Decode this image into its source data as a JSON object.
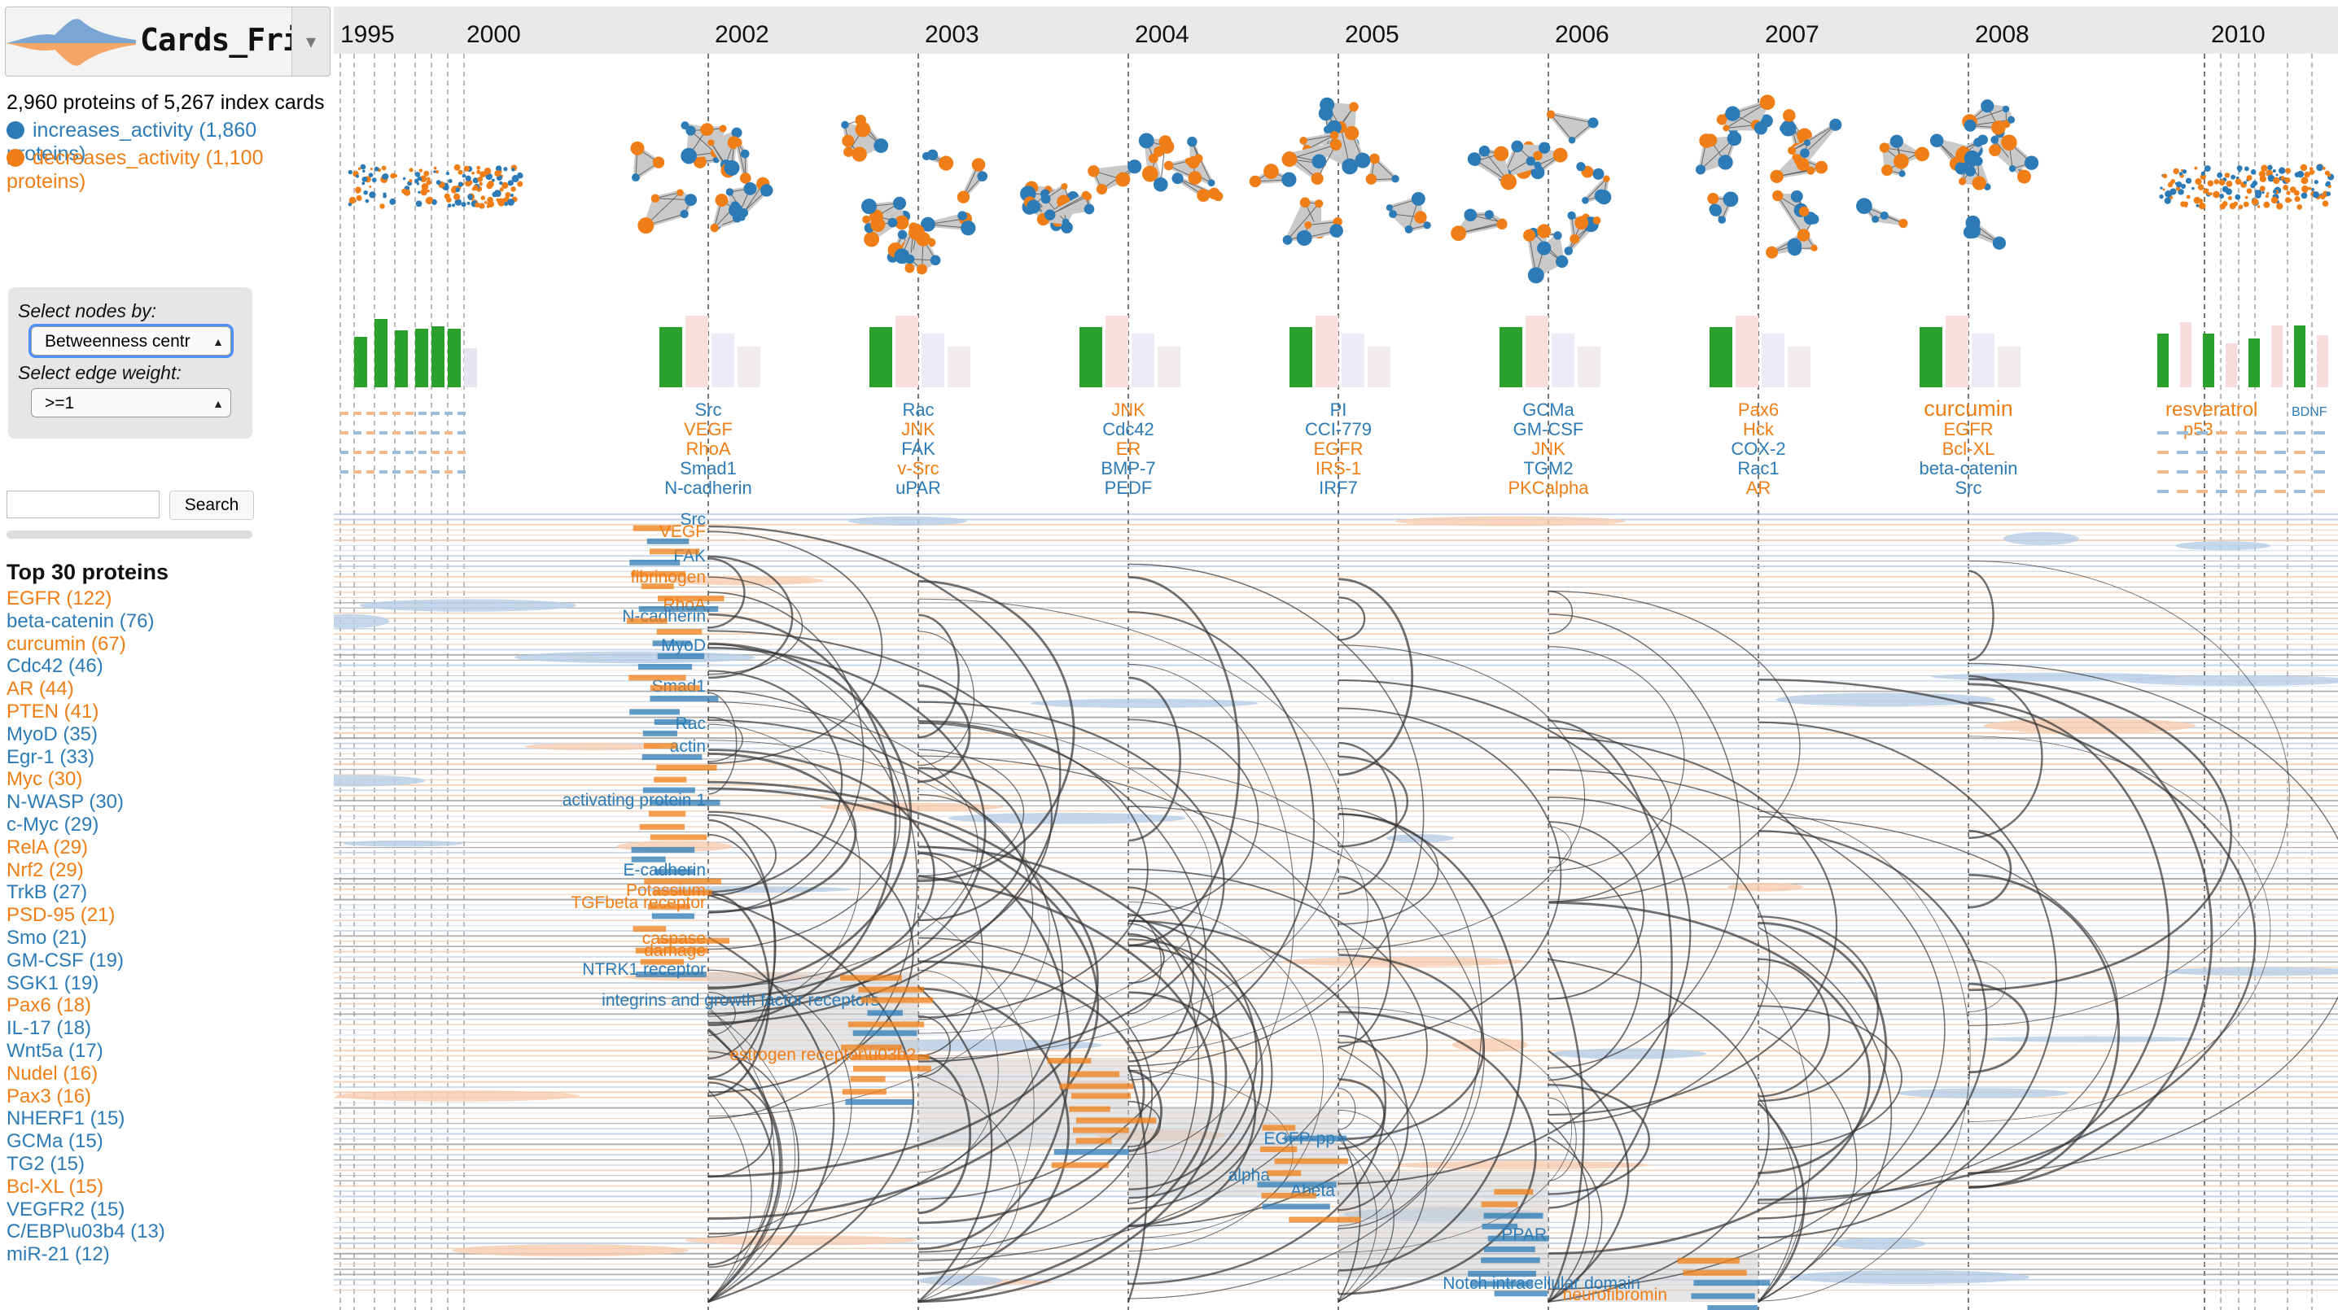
{
  "app": {
    "name": "Cards_Fries"
  },
  "summary": {
    "count_text": "2,960 proteins of 5,267 index cards",
    "legend": [
      {
        "label": "increases_activity (1,860 proteins)",
        "color": "#2c7bb6"
      },
      {
        "label": "decreases_activity (1,100 proteins)",
        "color": "#f07e16"
      }
    ]
  },
  "controls": {
    "select_nodes_label": "Select nodes by:",
    "select_nodes_value": "Betweenness centr",
    "select_edge_label": "Select edge weight:",
    "select_edge_value": ">=1"
  },
  "search": {
    "placeholder": "",
    "button_label": "Search"
  },
  "top_proteins": {
    "title": "Top 30 proteins",
    "items": [
      {
        "label": "EGFR (122)",
        "type": "decrease"
      },
      {
        "label": "beta-catenin (76)",
        "type": "increase"
      },
      {
        "label": "curcumin (67)",
        "type": "decrease"
      },
      {
        "label": "Cdc42 (46)",
        "type": "increase"
      },
      {
        "label": "AR (44)",
        "type": "decrease"
      },
      {
        "label": "PTEN (41)",
        "type": "decrease"
      },
      {
        "label": "MyoD (35)",
        "type": "increase"
      },
      {
        "label": "Egr-1 (33)",
        "type": "increase"
      },
      {
        "label": "Myc (30)",
        "type": "decrease"
      },
      {
        "label": "N-WASP (30)",
        "type": "increase"
      },
      {
        "label": "c-Myc (29)",
        "type": "increase"
      },
      {
        "label": "RelA (29)",
        "type": "decrease"
      },
      {
        "label": "Nrf2 (29)",
        "type": "decrease"
      },
      {
        "label": "TrkB (27)",
        "type": "increase"
      },
      {
        "label": "PSD-95 (21)",
        "type": "decrease"
      },
      {
        "label": "Smo (21)",
        "type": "increase"
      },
      {
        "label": "GM-CSF (19)",
        "type": "increase"
      },
      {
        "label": "SGK1 (19)",
        "type": "increase"
      },
      {
        "label": "Pax6 (18)",
        "type": "decrease"
      },
      {
        "label": "IL-17 (18)",
        "type": "increase"
      },
      {
        "label": "Wnt5a (17)",
        "type": "increase"
      },
      {
        "label": "Nudel (16)",
        "type": "decrease"
      },
      {
        "label": "Pax3 (16)",
        "type": "decrease"
      },
      {
        "label": "NHERF1 (15)",
        "type": "increase"
      },
      {
        "label": "GCMa (15)",
        "type": "increase"
      },
      {
        "label": "TG2 (15)",
        "type": "increase"
      },
      {
        "label": "Bcl-XL (15)",
        "type": "decrease"
      },
      {
        "label": "VEGFR2 (15)",
        "type": "increase"
      },
      {
        "label": "C/EBP\\u03b4 (13)",
        "type": "increase"
      },
      {
        "label": "miR-21 (12)",
        "type": "increase"
      }
    ]
  },
  "timeline": {
    "years": [
      "1995",
      "2000",
      "2002",
      "2003",
      "2004",
      "2005",
      "2006",
      "2007",
      "2008",
      "2010"
    ],
    "columns": [
      {
        "year": "2002",
        "proteins": [
          {
            "name": "Src",
            "type": "increase"
          },
          {
            "name": "VEGF",
            "type": "decrease"
          },
          {
            "name": "RhoA",
            "type": "decrease"
          },
          {
            "name": "Smad1",
            "type": "increase"
          },
          {
            "name": "N-cadherin",
            "type": "increase"
          }
        ]
      },
      {
        "year": "2003",
        "proteins": [
          {
            "name": "Rac",
            "type": "increase"
          },
          {
            "name": "JNK",
            "type": "decrease"
          },
          {
            "name": "FAK",
            "type": "increase"
          },
          {
            "name": "v-Src",
            "type": "decrease"
          },
          {
            "name": "uPAR",
            "type": "increase"
          }
        ]
      },
      {
        "year": "2004",
        "proteins": [
          {
            "name": "JNK",
            "type": "decrease"
          },
          {
            "name": "Cdc42",
            "type": "increase"
          },
          {
            "name": "ER",
            "type": "decrease"
          },
          {
            "name": "BMP-7",
            "type": "increase"
          },
          {
            "name": "PEDF",
            "type": "increase"
          }
        ]
      },
      {
        "year": "2005",
        "proteins": [
          {
            "name": "PI",
            "type": "increase"
          },
          {
            "name": "CCI-779",
            "type": "increase"
          },
          {
            "name": "EGFR",
            "type": "decrease"
          },
          {
            "name": "IRS-1",
            "type": "decrease"
          },
          {
            "name": "IRF7",
            "type": "increase"
          }
        ]
      },
      {
        "year": "2006",
        "proteins": [
          {
            "name": "GCMa",
            "type": "increase"
          },
          {
            "name": "GM-CSF",
            "type": "increase"
          },
          {
            "name": "JNK",
            "type": "decrease"
          },
          {
            "name": "TGM2",
            "type": "increase"
          },
          {
            "name": "PKCalpha",
            "type": "decrease"
          }
        ]
      },
      {
        "year": "2007",
        "proteins": [
          {
            "name": "Pax6",
            "type": "decrease"
          },
          {
            "name": "Hck",
            "type": "decrease"
          },
          {
            "name": "COX-2",
            "type": "increase"
          },
          {
            "name": "Rac1",
            "type": "increase"
          },
          {
            "name": "AR",
            "type": "decrease"
          }
        ]
      },
      {
        "year": "2008",
        "proteins": [
          {
            "name": "curcumin",
            "type": "decrease"
          },
          {
            "name": "EGFR",
            "type": "decrease"
          },
          {
            "name": "Bcl-XL",
            "type": "decrease"
          },
          {
            "name": "beta-catenin",
            "type": "increase"
          },
          {
            "name": "Src",
            "type": "increase"
          }
        ]
      }
    ],
    "late_labels": [
      {
        "name": "resveratrol",
        "type": "decrease"
      },
      {
        "name": "p53",
        "type": "decrease"
      },
      {
        "name": "BDNF",
        "type": "increase"
      }
    ],
    "row_labels": [
      {
        "name": "Src",
        "type": "increase"
      },
      {
        "name": "VEGF",
        "type": "decrease"
      },
      {
        "name": "FAK",
        "type": "increase"
      },
      {
        "name": "fibrinogen",
        "type": "decrease"
      },
      {
        "name": "N-cadherin",
        "type": "increase"
      },
      {
        "name": "RhoA",
        "type": "decrease"
      },
      {
        "name": "MyoD",
        "type": "increase"
      },
      {
        "name": "Smad1",
        "type": "increase"
      },
      {
        "name": "Rac",
        "type": "increase"
      },
      {
        "name": "actin",
        "type": "increase"
      },
      {
        "name": "activating protein 1",
        "type": "increase"
      },
      {
        "name": "E-cadherin",
        "type": "increase"
      },
      {
        "name": "Potassium",
        "type": "decrease"
      },
      {
        "name": "TGFbeta receptor",
        "type": "decrease"
      },
      {
        "name": "caspase",
        "type": "decrease"
      },
      {
        "name": "damage",
        "type": "decrease"
      },
      {
        "name": "NTRK1 receptor",
        "type": "increase"
      },
      {
        "name": "integrins and growth factor receptors",
        "type": "increase"
      },
      {
        "name": "estrogen receptor\\u03b2",
        "type": "decrease"
      },
      {
        "name": "EGFP-pp",
        "type": "increase"
      },
      {
        "name": "alpha",
        "type": "increase"
      },
      {
        "name": "Abeta",
        "type": "increase"
      },
      {
        "name": "PPAR",
        "type": "increase"
      },
      {
        "name": "Notch intracellular domain",
        "type": "increase"
      },
      {
        "name": "neurofibromin",
        "type": "decrease"
      }
    ]
  }
}
